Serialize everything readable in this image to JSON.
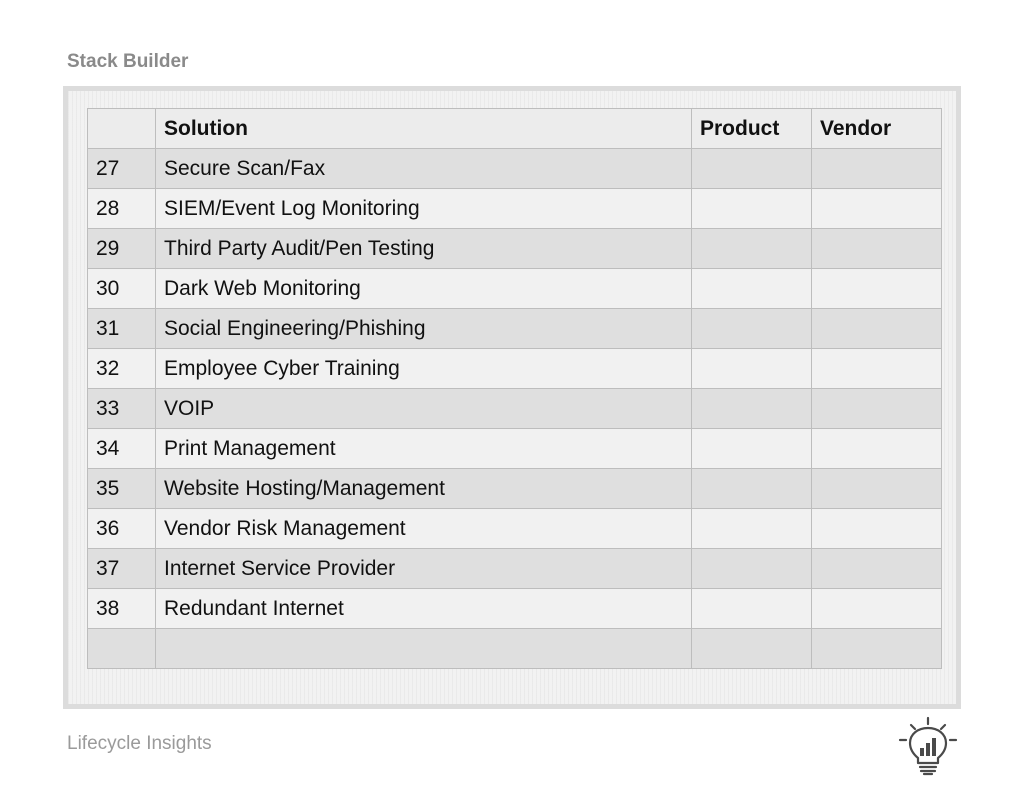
{
  "header": {
    "title": "Stack Builder"
  },
  "table": {
    "columns": [
      "",
      "Solution",
      "Product",
      "Vendor"
    ],
    "rows": [
      {
        "num": "27",
        "solution": "Secure Scan/Fax",
        "product": "",
        "vendor": ""
      },
      {
        "num": "28",
        "solution": "SIEM/Event Log Monitoring",
        "product": "",
        "vendor": ""
      },
      {
        "num": "29",
        "solution": "Third Party Audit/Pen Testing",
        "product": "",
        "vendor": ""
      },
      {
        "num": "30",
        "solution": "Dark Web Monitoring",
        "product": "",
        "vendor": ""
      },
      {
        "num": "31",
        "solution": "Social Engineering/Phishing",
        "product": "",
        "vendor": ""
      },
      {
        "num": "32",
        "solution": "Employee Cyber Training",
        "product": "",
        "vendor": ""
      },
      {
        "num": "33",
        "solution": "VOIP",
        "product": "",
        "vendor": ""
      },
      {
        "num": "34",
        "solution": "Print Management",
        "product": "",
        "vendor": ""
      },
      {
        "num": "35",
        "solution": "Website Hosting/Management",
        "product": "",
        "vendor": ""
      },
      {
        "num": "36",
        "solution": "Vendor Risk Management",
        "product": "",
        "vendor": ""
      },
      {
        "num": "37",
        "solution": "Internet Service Provider",
        "product": "",
        "vendor": ""
      },
      {
        "num": "38",
        "solution": "Redundant Internet",
        "product": "",
        "vendor": ""
      },
      {
        "num": "",
        "solution": "",
        "product": "",
        "vendor": ""
      }
    ]
  },
  "footer": {
    "brand": "Lifecycle Insights",
    "logo_icon": "lightbulb-chart-icon"
  }
}
